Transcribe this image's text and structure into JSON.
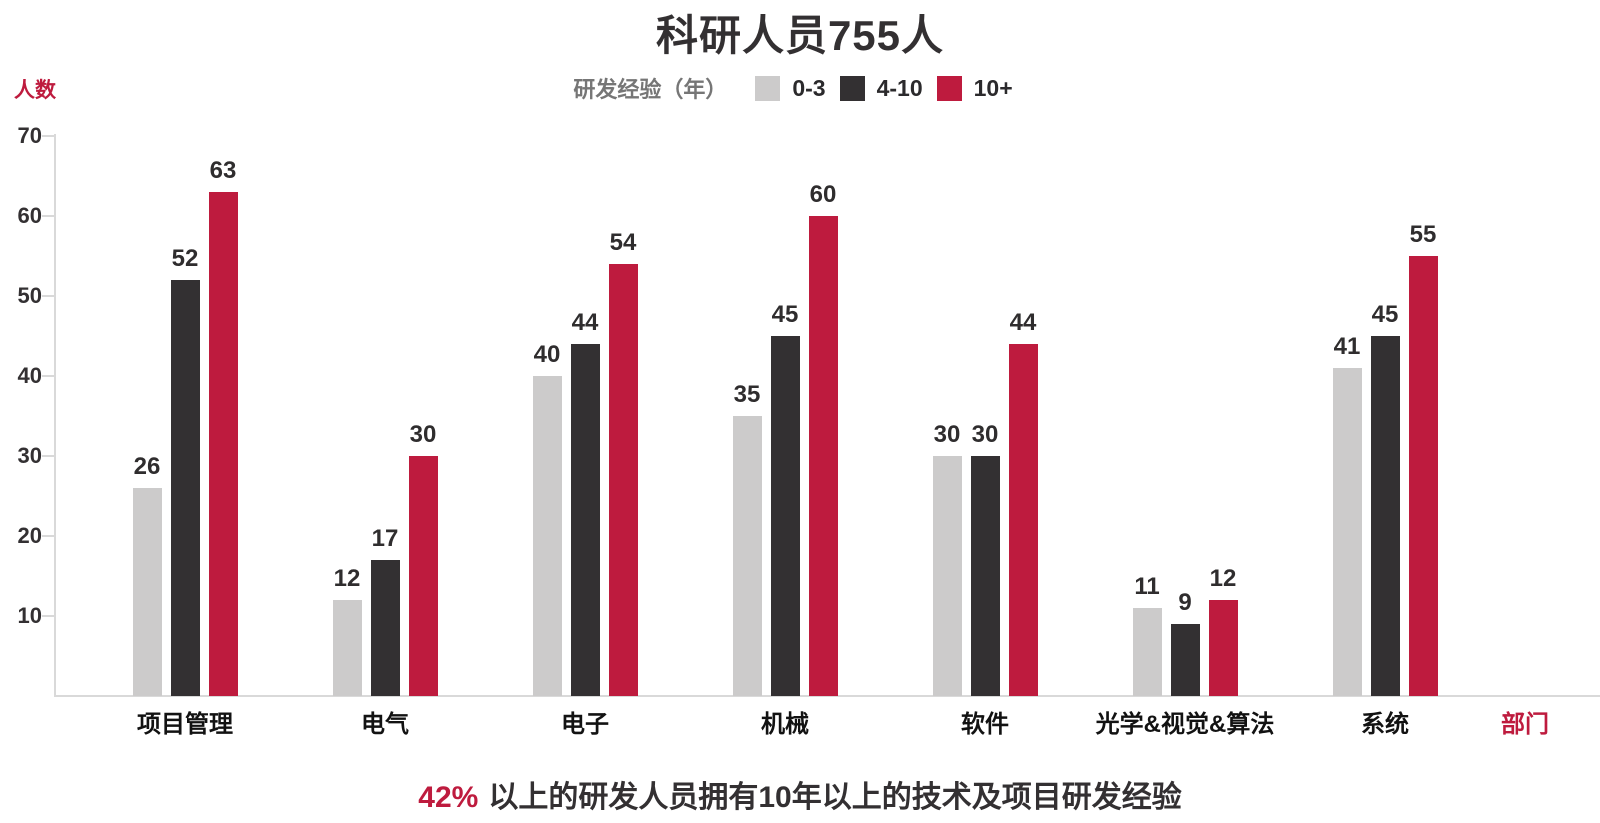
{
  "title": "科研人员755人",
  "y_axis": {
    "label": "人数",
    "ticks": [
      70,
      60,
      50,
      40,
      30,
      20,
      10
    ]
  },
  "x_axis": {
    "label": "部门"
  },
  "legend": {
    "title": "研发经验（年）",
    "items": [
      {
        "label": "0-3",
        "color": "#cccbcb"
      },
      {
        "label": "4-10",
        "color": "#333032"
      },
      {
        "label": "10+",
        "color": "#be1b3e"
      }
    ]
  },
  "footnote": {
    "highlight": "42%",
    "text": "以上的研发人员拥有10年以上的技术及项目研发经验"
  },
  "colors": {
    "accent_red": "#be1b3e",
    "dark": "#333032",
    "light_gray": "#cccbcb",
    "axis_gray": "#d9d9d9"
  },
  "chart_data": {
    "type": "bar",
    "title": "科研人员755人",
    "categories": [
      "项目管理",
      "电气",
      "电子",
      "机械",
      "软件",
      "光学&视觉&算法",
      "系统"
    ],
    "series": [
      {
        "name": "0-3",
        "color": "#cccbcb",
        "values": [
          26,
          12,
          40,
          35,
          30,
          11,
          41
        ]
      },
      {
        "name": "4-10",
        "color": "#333032",
        "values": [
          52,
          17,
          44,
          45,
          30,
          9,
          45
        ]
      },
      {
        "name": "10+",
        "color": "#be1b3e",
        "values": [
          63,
          30,
          54,
          60,
          44,
          12,
          55
        ]
      }
    ],
    "xlabel": "部门",
    "ylabel": "人数",
    "ylim": [
      0,
      70
    ],
    "ytick_step": 10,
    "grid": false,
    "legend_position": "top-center",
    "legend_title": "研发经验（年）",
    "value_labels": true,
    "annotation": "42% 以上的研发人员拥有10年以上的技术及项目研发经验"
  }
}
